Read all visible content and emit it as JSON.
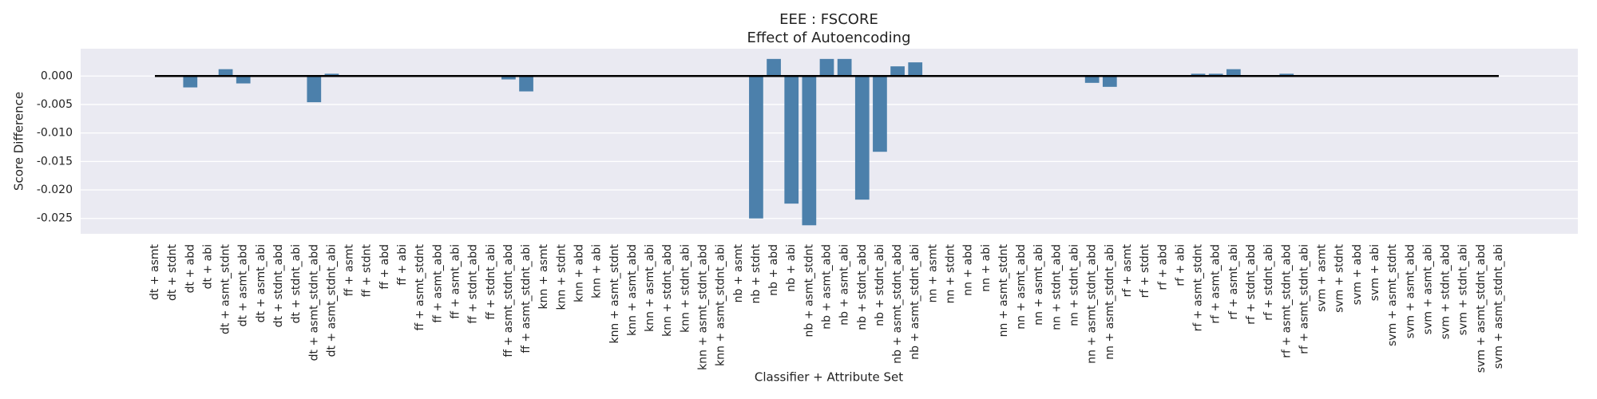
{
  "chart_data": {
    "type": "bar",
    "title": "EEE : FSCORE",
    "subtitle": "Effect of Autoencoding",
    "xlabel": "Classifier + Attribute Set",
    "ylabel": "Score Difference",
    "color": "#4c80ab",
    "grid": true,
    "ylim": [
      -0.0277,
      0.0048
    ],
    "yticks": [
      {
        "value": 0,
        "label": "0.000"
      },
      {
        "value": -0.005,
        "label": "-0.005"
      },
      {
        "value": -0.01,
        "label": "-0.010"
      },
      {
        "value": -0.015,
        "label": "-0.015"
      },
      {
        "value": -0.02,
        "label": "-0.020"
      },
      {
        "value": -0.025,
        "label": "-0.025"
      }
    ],
    "categories": [
      "dt + asmt",
      "dt + stdnt",
      "dt + abd",
      "dt + abi",
      "dt + asmt_stdnt",
      "dt + asmt_abd",
      "dt + asmt_abi",
      "dt + stdnt_abd",
      "dt + stdnt_abi",
      "dt + asmt_stdnt_abd",
      "dt + asmt_stdnt_abi",
      "ff + asmt",
      "ff + stdnt",
      "ff + abd",
      "ff + abi",
      "ff + asmt_stdnt",
      "ff + asmt_abd",
      "ff + asmt_abi",
      "ff + stdnt_abd",
      "ff + stdnt_abi",
      "ff + asmt_stdnt_abd",
      "ff + asmt_stdnt_abi",
      "knn + asmt",
      "knn + stdnt",
      "knn + abd",
      "knn + abi",
      "knn + asmt_stdnt",
      "knn + asmt_abd",
      "knn + asmt_abi",
      "knn + stdnt_abd",
      "knn + stdnt_abi",
      "knn + asmt_stdnt_abd",
      "knn + asmt_stdnt_abi",
      "nb + asmt",
      "nb + stdnt",
      "nb + abd",
      "nb + abi",
      "nb + asmt_stdnt",
      "nb + asmt_abd",
      "nb + asmt_abi",
      "nb + stdnt_abd",
      "nb + stdnt_abi",
      "nb + asmt_stdnt_abd",
      "nb + asmt_stdnt_abi",
      "nn + asmt",
      "nn + stdnt",
      "nn + abd",
      "nn + abi",
      "nn + asmt_stdnt",
      "nn + asmt_abd",
      "nn + asmt_abi",
      "nn + stdnt_abd",
      "nn + stdnt_abi",
      "nn + asmt_stdnt_abd",
      "nn + asmt_stdnt_abi",
      "rf + asmt",
      "rf + stdnt",
      "rf + abd",
      "rf + abi",
      "rf + asmt_stdnt",
      "rf + asmt_abd",
      "rf + asmt_abi",
      "rf + stdnt_abd",
      "rf + stdnt_abi",
      "rf + asmt_stdnt_abd",
      "rf + asmt_stdnt_abi",
      "svm + asmt",
      "svm + stdnt",
      "svm + abd",
      "svm + abi",
      "svm + asmt_stdnt",
      "svm + asmt_abd",
      "svm + asmt_abi",
      "svm + stdnt_abd",
      "svm + stdnt_abi",
      "svm + asmt_stdnt_abd",
      "svm + asmt_stdnt_abi"
    ],
    "values": [
      0,
      0,
      -0.002,
      0,
      0.0012,
      -0.0013,
      0,
      0,
      0,
      -0.0046,
      0.0004,
      0,
      0,
      0,
      0,
      0,
      0,
      0,
      0,
      0,
      -0.0006,
      -0.0027,
      0,
      0,
      0,
      0,
      0,
      0,
      0,
      0,
      0,
      0,
      0,
      0,
      -0.025,
      0.003,
      -0.0224,
      -0.0262,
      0.003,
      0.003,
      -0.0217,
      -0.0133,
      0.0017,
      0.0024,
      0,
      0,
      0,
      0,
      0,
      0,
      0,
      0,
      0,
      -0.0012,
      -0.0019,
      0,
      0,
      0,
      0,
      0.0004,
      0.0004,
      0.0012,
      0,
      0,
      0.0004,
      0,
      0,
      0,
      0,
      0,
      0,
      0,
      0,
      0,
      0,
      0,
      0
    ]
  }
}
